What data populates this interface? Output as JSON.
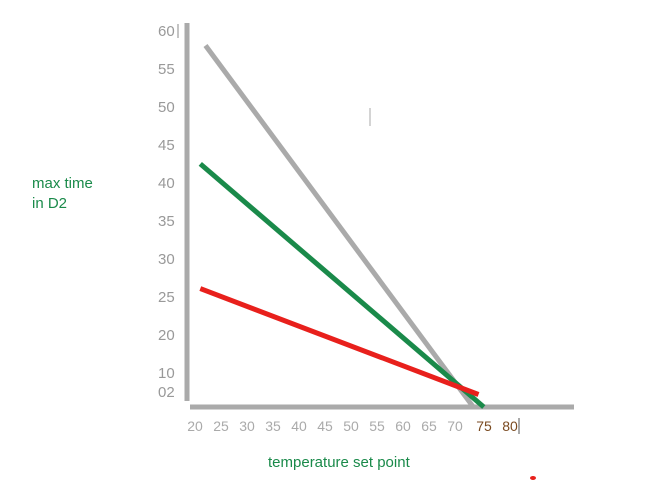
{
  "chart_data": {
    "type": "line",
    "title": "",
    "xlabel": "temperature set point",
    "ylabel_lines": [
      "max time",
      "in D2"
    ],
    "xlim": [
      20,
      80
    ],
    "ylim": [
      0,
      60
    ],
    "x_ticks": [
      "20",
      "25",
      "30",
      "35",
      "40",
      "45",
      "50",
      "55",
      "60",
      "65",
      "70",
      "75",
      "80"
    ],
    "y_ticks": [
      "60",
      "55",
      "50",
      "45",
      "40",
      "35",
      "30",
      "25",
      "20",
      "10",
      "02"
    ],
    "grid": false,
    "series": [
      {
        "color": "#aaaaaa",
        "x": [
          22,
          73
        ],
        "y": [
          58,
          0
        ]
      },
      {
        "color": "#1a8a4a",
        "x": [
          21,
          75
        ],
        "y": [
          39,
          0
        ]
      },
      {
        "color": "#e8201c",
        "x": [
          21,
          74
        ],
        "y": [
          19,
          2
        ]
      }
    ],
    "colors": {
      "axis": "#aaaaaa",
      "ytick": "#999999",
      "xtick": "#aaaaaa",
      "xtick_dark": "#7a4a20",
      "label": "#1a8a4a"
    }
  }
}
